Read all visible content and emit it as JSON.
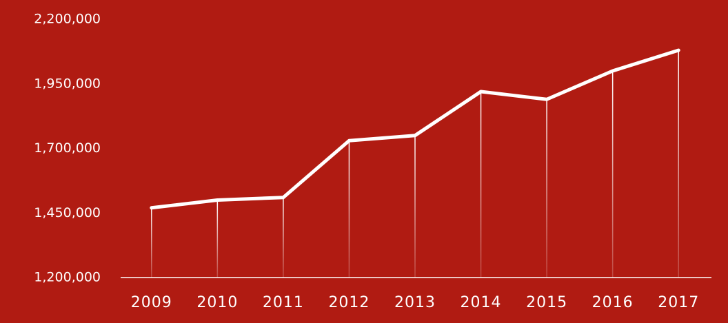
{
  "chart_data": {
    "type": "line",
    "categories": [
      "2009",
      "2010",
      "2011",
      "2012",
      "2013",
      "2014",
      "2015",
      "2016",
      "2017"
    ],
    "values": [
      1470000,
      1500000,
      1510000,
      1730000,
      1750000,
      1920000,
      1890000,
      2000000,
      2080000
    ],
    "color": "#ffffff",
    "ylim": [
      1200000,
      2200000
    ],
    "yticks": [
      {
        "value": 1200000,
        "label": "1,200,000"
      },
      {
        "value": 1450000,
        "label": "1,450,000"
      },
      {
        "value": 1700000,
        "label": "1,700,000"
      },
      {
        "value": 1950000,
        "label": "1,950,000"
      },
      {
        "value": 2200000,
        "label": "2,200,000"
      }
    ]
  }
}
